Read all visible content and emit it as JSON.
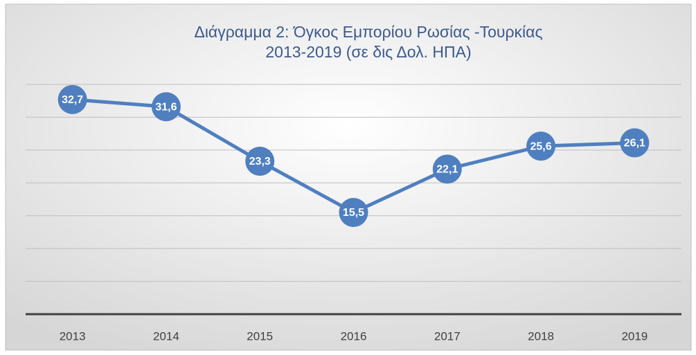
{
  "chart_data": {
    "type": "line",
    "title": [
      "Διάγραμμα  2: Όγκος Εμπορίου Ρωσίας -Τουρκίας",
      "2013-2019 (σε δις Δολ. ΗΠΑ)"
    ],
    "categories": [
      "2013",
      "2014",
      "2015",
      "2016",
      "2017",
      "2018",
      "2019"
    ],
    "series": [
      {
        "color": "#4f7fbf",
        "values": [
          32.7,
          31.6,
          23.3,
          15.5,
          22.1,
          25.6,
          26.1
        ],
        "value_labels": [
          "32,7",
          "31,6",
          "23,3",
          "15,5",
          "22,1",
          "25,6",
          "26,1"
        ]
      }
    ],
    "ylim": [
      0,
      35
    ],
    "yticks": [
      0,
      5,
      10,
      15,
      20,
      25,
      30,
      35
    ],
    "grid": true
  }
}
